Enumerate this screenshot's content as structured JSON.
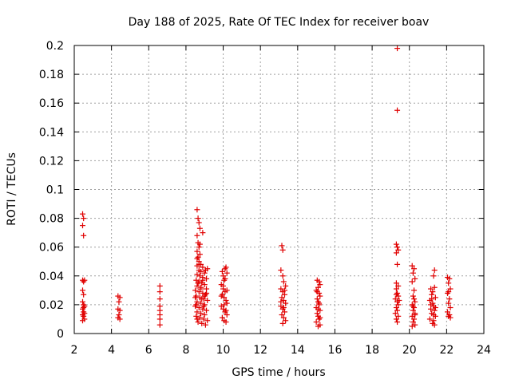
{
  "chart_data": {
    "type": "scatter",
    "title": "Day 188 of 2025, Rate Of TEC Index for receiver boav",
    "xlabel": "GPS time / hours",
    "ylabel": "ROTI / TECUs",
    "xlim": [
      2,
      24
    ],
    "ylim": [
      0,
      0.2
    ],
    "xticks": [
      2,
      4,
      6,
      8,
      10,
      12,
      14,
      16,
      18,
      20,
      22,
      24
    ],
    "yticks": [
      0,
      0.02,
      0.04,
      0.06,
      0.08,
      0.1,
      0.12,
      0.14,
      0.16,
      0.18,
      0.2
    ],
    "xtick_labels": [
      "2",
      "4",
      "6",
      "8",
      "10",
      "12",
      "14",
      "16",
      "18",
      "20",
      "22",
      "24"
    ],
    "ytick_labels": [
      "0",
      "0.02",
      "0.04",
      "0.06",
      "0.08",
      "0.1",
      "0.12",
      "0.14",
      "0.16",
      "0.18",
      "0.2"
    ],
    "grid": true,
    "marker": "+",
    "color": "#e00000",
    "series": [
      {
        "points": [
          [
            2.45,
            0.083
          ],
          [
            2.5,
            0.08
          ],
          [
            2.45,
            0.075
          ],
          [
            2.5,
            0.068
          ],
          [
            2.45,
            0.037
          ],
          [
            2.5,
            0.036
          ],
          [
            2.55,
            0.037
          ],
          [
            2.45,
            0.03
          ],
          [
            2.5,
            0.027
          ],
          [
            2.45,
            0.022
          ],
          [
            2.5,
            0.02
          ],
          [
            2.55,
            0.019
          ],
          [
            2.45,
            0.017
          ],
          [
            2.5,
            0.015
          ],
          [
            2.45,
            0.013
          ],
          [
            2.5,
            0.012
          ],
          [
            2.55,
            0.01
          ],
          [
            2.45,
            0.009
          ],
          [
            2.5,
            0.018
          ],
          [
            2.55,
            0.014
          ],
          [
            4.35,
            0.026
          ],
          [
            4.45,
            0.025
          ],
          [
            4.4,
            0.022
          ],
          [
            4.35,
            0.017
          ],
          [
            4.45,
            0.016
          ],
          [
            4.4,
            0.013
          ],
          [
            4.35,
            0.011
          ],
          [
            4.45,
            0.01
          ],
          [
            6.6,
            0.033
          ],
          [
            6.6,
            0.029
          ],
          [
            6.6,
            0.024
          ],
          [
            6.6,
            0.019
          ],
          [
            6.6,
            0.016
          ],
          [
            6.6,
            0.013
          ],
          [
            6.6,
            0.01
          ],
          [
            6.6,
            0.006
          ],
          [
            8.6,
            0.086
          ],
          [
            8.65,
            0.08
          ],
          [
            8.7,
            0.077
          ],
          [
            8.75,
            0.073
          ],
          [
            8.6,
            0.068
          ],
          [
            8.9,
            0.07
          ],
          [
            8.65,
            0.063
          ],
          [
            8.7,
            0.06
          ],
          [
            8.6,
            0.057
          ],
          [
            8.75,
            0.055
          ],
          [
            8.65,
            0.053
          ],
          [
            8.7,
            0.05
          ],
          [
            8.8,
            0.048
          ],
          [
            8.6,
            0.047
          ],
          [
            8.9,
            0.046
          ],
          [
            8.7,
            0.044
          ],
          [
            8.8,
            0.043
          ],
          [
            9.0,
            0.042
          ],
          [
            8.6,
            0.041
          ],
          [
            8.75,
            0.04
          ],
          [
            8.9,
            0.039
          ],
          [
            9.1,
            0.038
          ],
          [
            8.55,
            0.037
          ],
          [
            8.7,
            0.036
          ],
          [
            8.85,
            0.035
          ],
          [
            9.0,
            0.034
          ],
          [
            8.6,
            0.033
          ],
          [
            8.8,
            0.032
          ],
          [
            9.1,
            0.031
          ],
          [
            8.5,
            0.03
          ],
          [
            8.7,
            0.029
          ],
          [
            8.9,
            0.028
          ],
          [
            9.05,
            0.027
          ],
          [
            8.55,
            0.026
          ],
          [
            8.75,
            0.025
          ],
          [
            8.95,
            0.024
          ],
          [
            9.15,
            0.023
          ],
          [
            8.6,
            0.022
          ],
          [
            8.8,
            0.021
          ],
          [
            9.0,
            0.02
          ],
          [
            8.5,
            0.019
          ],
          [
            8.7,
            0.018
          ],
          [
            8.9,
            0.017
          ],
          [
            9.1,
            0.016
          ],
          [
            8.6,
            0.015
          ],
          [
            8.8,
            0.014
          ],
          [
            9.0,
            0.013
          ],
          [
            8.55,
            0.012
          ],
          [
            8.75,
            0.011
          ],
          [
            8.95,
            0.01
          ],
          [
            9.15,
            0.009
          ],
          [
            8.65,
            0.008
          ],
          [
            8.85,
            0.007
          ],
          [
            9.05,
            0.006
          ],
          [
            8.5,
            0.025
          ],
          [
            8.8,
            0.031
          ],
          [
            9.0,
            0.026
          ],
          [
            8.65,
            0.035
          ],
          [
            8.95,
            0.019
          ],
          [
            9.1,
            0.028
          ],
          [
            8.6,
            0.01
          ],
          [
            8.9,
            0.037
          ],
          [
            9.05,
            0.044
          ],
          [
            8.7,
            0.048
          ],
          [
            8.75,
            0.062
          ],
          [
            8.6,
            0.052
          ],
          [
            9.15,
            0.045
          ],
          [
            8.55,
            0.02
          ],
          [
            8.85,
            0.024
          ],
          [
            9.95,
            0.043
          ],
          [
            10.0,
            0.04
          ],
          [
            10.05,
            0.037
          ],
          [
            10.1,
            0.045
          ],
          [
            10.15,
            0.046
          ],
          [
            10.2,
            0.042
          ],
          [
            9.9,
            0.034
          ],
          [
            10.0,
            0.031
          ],
          [
            10.1,
            0.029
          ],
          [
            9.95,
            0.027
          ],
          [
            10.05,
            0.025
          ],
          [
            10.15,
            0.023
          ],
          [
            10.2,
            0.021
          ],
          [
            9.9,
            0.019
          ],
          [
            10.0,
            0.017
          ],
          [
            10.1,
            0.015
          ],
          [
            10.2,
            0.013
          ],
          [
            9.95,
            0.011
          ],
          [
            10.05,
            0.009
          ],
          [
            10.15,
            0.008
          ],
          [
            10.0,
            0.033
          ],
          [
            10.1,
            0.038
          ],
          [
            9.9,
            0.026
          ],
          [
            10.2,
            0.03
          ],
          [
            10.05,
            0.02
          ],
          [
            10.15,
            0.016
          ],
          [
            13.15,
            0.061
          ],
          [
            13.2,
            0.058
          ],
          [
            13.1,
            0.044
          ],
          [
            13.2,
            0.04
          ],
          [
            13.25,
            0.036
          ],
          [
            13.35,
            0.033
          ],
          [
            13.1,
            0.031
          ],
          [
            13.2,
            0.029
          ],
          [
            13.3,
            0.027
          ],
          [
            13.15,
            0.025
          ],
          [
            13.25,
            0.023
          ],
          [
            13.35,
            0.021
          ],
          [
            13.1,
            0.019
          ],
          [
            13.2,
            0.017
          ],
          [
            13.3,
            0.015
          ],
          [
            13.15,
            0.013
          ],
          [
            13.25,
            0.011
          ],
          [
            13.35,
            0.009
          ],
          [
            13.2,
            0.007
          ],
          [
            13.3,
            0.03
          ],
          [
            13.1,
            0.022
          ],
          [
            13.25,
            0.018
          ],
          [
            15.05,
            0.037
          ],
          [
            15.15,
            0.036
          ],
          [
            15.2,
            0.034
          ],
          [
            15.1,
            0.032
          ],
          [
            15.0,
            0.03
          ],
          [
            15.15,
            0.028
          ],
          [
            15.2,
            0.026
          ],
          [
            15.05,
            0.024
          ],
          [
            15.1,
            0.022
          ],
          [
            15.15,
            0.02
          ],
          [
            15.0,
            0.018
          ],
          [
            15.2,
            0.016
          ],
          [
            15.05,
            0.014
          ],
          [
            15.1,
            0.012
          ],
          [
            15.15,
            0.01
          ],
          [
            15.0,
            0.008
          ],
          [
            15.2,
            0.006
          ],
          [
            15.1,
            0.005
          ],
          [
            15.05,
            0.029
          ],
          [
            15.15,
            0.021
          ],
          [
            15.1,
            0.017
          ],
          [
            15.2,
            0.011
          ],
          [
            19.35,
            0.198
          ],
          [
            19.35,
            0.155
          ],
          [
            19.3,
            0.062
          ],
          [
            19.35,
            0.06
          ],
          [
            19.4,
            0.058
          ],
          [
            19.3,
            0.056
          ],
          [
            19.35,
            0.048
          ],
          [
            19.3,
            0.035
          ],
          [
            19.4,
            0.033
          ],
          [
            19.3,
            0.031
          ],
          [
            19.35,
            0.028
          ],
          [
            19.4,
            0.026
          ],
          [
            19.25,
            0.024
          ],
          [
            19.35,
            0.022
          ],
          [
            19.4,
            0.02
          ],
          [
            19.3,
            0.018
          ],
          [
            19.35,
            0.016
          ],
          [
            19.25,
            0.014
          ],
          [
            19.4,
            0.012
          ],
          [
            19.3,
            0.01
          ],
          [
            19.35,
            0.008
          ],
          [
            19.45,
            0.023
          ],
          [
            19.3,
            0.027
          ],
          [
            20.15,
            0.047
          ],
          [
            20.25,
            0.045
          ],
          [
            20.2,
            0.042
          ],
          [
            20.3,
            0.038
          ],
          [
            20.15,
            0.036
          ],
          [
            20.25,
            0.03
          ],
          [
            20.2,
            0.026
          ],
          [
            20.3,
            0.022
          ],
          [
            20.15,
            0.02
          ],
          [
            20.25,
            0.018
          ],
          [
            20.2,
            0.016
          ],
          [
            20.3,
            0.014
          ],
          [
            20.15,
            0.012
          ],
          [
            20.25,
            0.01
          ],
          [
            20.2,
            0.008
          ],
          [
            20.3,
            0.006
          ],
          [
            20.15,
            0.005
          ],
          [
            20.25,
            0.024
          ],
          [
            20.2,
            0.019
          ],
          [
            20.3,
            0.013
          ],
          [
            21.15,
            0.031
          ],
          [
            21.25,
            0.029
          ],
          [
            21.35,
            0.044
          ],
          [
            21.3,
            0.04
          ],
          [
            21.2,
            0.027
          ],
          [
            21.35,
            0.032
          ],
          [
            21.4,
            0.025
          ],
          [
            21.1,
            0.023
          ],
          [
            21.25,
            0.021
          ],
          [
            21.3,
            0.019
          ],
          [
            21.15,
            0.017
          ],
          [
            21.35,
            0.016
          ],
          [
            21.2,
            0.014
          ],
          [
            21.4,
            0.012
          ],
          [
            21.1,
            0.01
          ],
          [
            21.3,
            0.009
          ],
          [
            21.25,
            0.007
          ],
          [
            21.35,
            0.006
          ],
          [
            21.15,
            0.02
          ],
          [
            21.4,
            0.018
          ],
          [
            21.2,
            0.024
          ],
          [
            21.3,
            0.013
          ],
          [
            22.05,
            0.039
          ],
          [
            22.15,
            0.038
          ],
          [
            22.1,
            0.035
          ],
          [
            22.2,
            0.031
          ],
          [
            22.05,
            0.028
          ],
          [
            22.15,
            0.024
          ],
          [
            22.1,
            0.021
          ],
          [
            22.2,
            0.018
          ],
          [
            22.05,
            0.015
          ],
          [
            22.15,
            0.013
          ],
          [
            22.1,
            0.012
          ],
          [
            22.2,
            0.011
          ],
          [
            22.1,
            0.029
          ]
        ]
      }
    ]
  }
}
